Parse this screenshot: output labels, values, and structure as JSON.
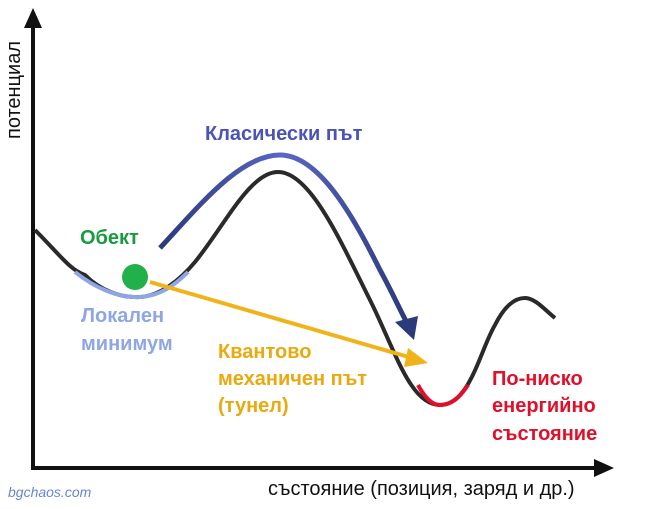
{
  "axes": {
    "y_label": "потенциал",
    "x_label": "състояние (позиция, заряд и др.)"
  },
  "labels": {
    "classical_path": "Класически път",
    "object": "Обект",
    "local_minimum": [
      "Локален",
      "минимум"
    ],
    "quantum_path": [
      "Квантово",
      "механичен път",
      "(тунел)"
    ],
    "lower_state": [
      "По-ниско",
      "енергийно",
      "състояние"
    ]
  },
  "watermark": "bgchaos.com"
}
